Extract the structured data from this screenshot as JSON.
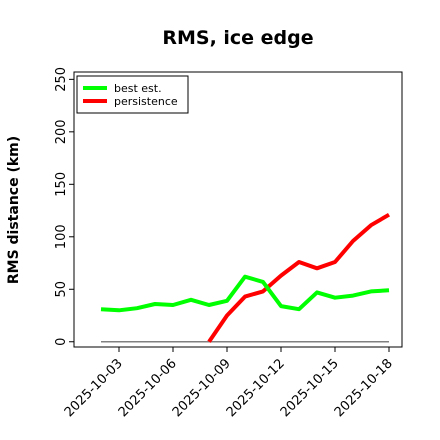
{
  "chart_data": {
    "type": "line",
    "title": "RMS, ice edge",
    "xlabel": "",
    "ylabel": "RMS distance (km)",
    "ylim": [
      -5,
      257
    ],
    "y_ticks": [
      "0",
      "50",
      "100",
      "150",
      "200",
      "250"
    ],
    "x_ticks": [
      "2025-10-03",
      "2025-10-06",
      "2025-10-09",
      "2025-10-12",
      "2025-10-15",
      "2025-10-18"
    ],
    "grid": false,
    "legend": "top-left",
    "series": [
      {
        "name": "best est.",
        "color": "#00ff00",
        "x": [
          "2025-10-02",
          "2025-10-03",
          "2025-10-04",
          "2025-10-05",
          "2025-10-06",
          "2025-10-07",
          "2025-10-08",
          "2025-10-09",
          "2025-10-10",
          "2025-10-11",
          "2025-10-12",
          "2025-10-13",
          "2025-10-14",
          "2025-10-15",
          "2025-10-16",
          "2025-10-17",
          "2025-10-18"
        ],
        "values": [
          31,
          30,
          32,
          36,
          35,
          40,
          35,
          39,
          62,
          57,
          34,
          31,
          47,
          42,
          44,
          48,
          49
        ]
      },
      {
        "name": "persistence",
        "color": "#ff0000",
        "x": [
          "2025-10-08",
          "2025-10-09",
          "2025-10-10",
          "2025-10-11",
          "2025-10-12",
          "2025-10-13",
          "2025-10-14",
          "2025-10-15",
          "2025-10-16",
          "2025-10-17",
          "2025-10-18"
        ],
        "values": [
          0,
          25,
          43,
          48,
          63,
          76,
          70,
          76,
          96,
          111,
          121
        ]
      },
      {
        "color": "#808080",
        "x": [
          "2025-10-02",
          "2025-10-18"
        ],
        "values": [
          0,
          0
        ]
      }
    ]
  }
}
